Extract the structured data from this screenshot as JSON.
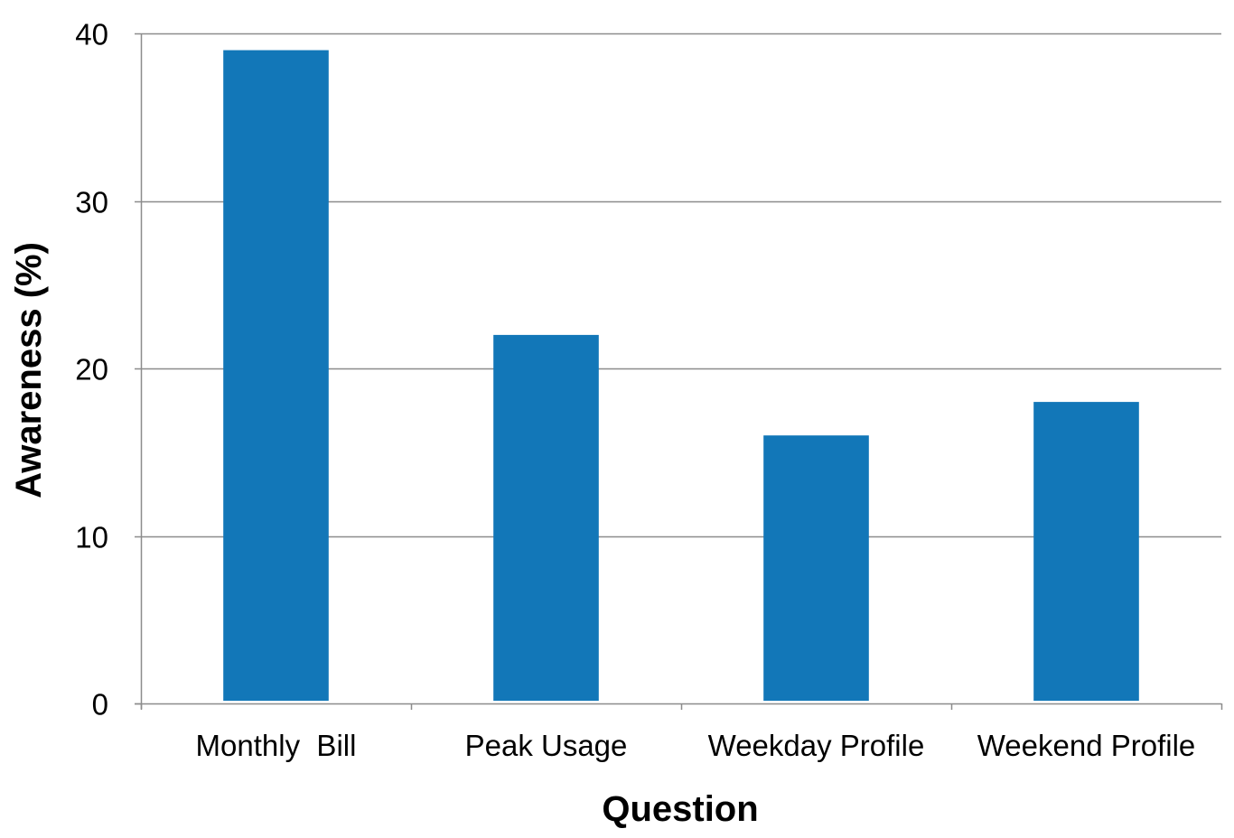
{
  "chart_data": {
    "type": "bar",
    "categories": [
      "Monthly  Bill",
      "Peak Usage",
      "Weekday Profile",
      "Weekend Profile"
    ],
    "values": [
      39,
      22,
      16,
      18
    ],
    "title": "",
    "xlabel": "Question",
    "ylabel": "Awareness (%)",
    "ylim": [
      0,
      40
    ],
    "yticks": [
      0,
      10,
      20,
      30,
      40
    ],
    "grid": true,
    "legend": "none",
    "bar_color": "#1277B8",
    "grid_color": "#8C8C8C"
  }
}
